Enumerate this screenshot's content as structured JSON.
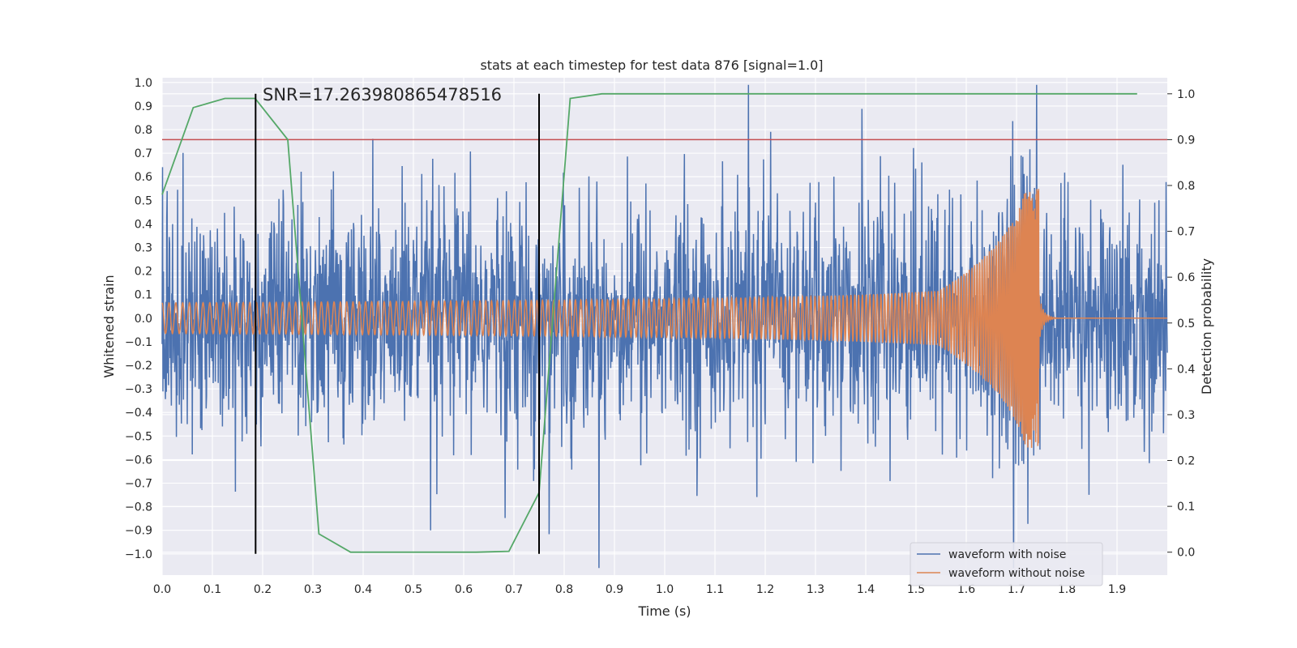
{
  "chart_data": {
    "type": "line",
    "title": "stats at each timestep for test data 876 [signal=1.0]",
    "xlabel": "Time (s)",
    "ylabel": "Whitened strain",
    "y2label": "Detection probability",
    "xlim": [
      0.0,
      2.0
    ],
    "ylim": [
      -1.09,
      1.02
    ],
    "y2lim": [
      -0.05,
      1.035
    ],
    "grid": true,
    "legend_position": "lower-right",
    "x_ticks": [
      "0.0",
      "0.1",
      "0.2",
      "0.3",
      "0.4",
      "0.5",
      "0.6",
      "0.7",
      "0.8",
      "0.9",
      "1.0",
      "1.1",
      "1.2",
      "1.3",
      "1.4",
      "1.5",
      "1.6",
      "1.7",
      "1.8",
      "1.9"
    ],
    "y_ticks": [
      "1.0",
      "0.9",
      "0.8",
      "0.7",
      "0.6",
      "0.5",
      "0.4",
      "0.3",
      "0.2",
      "0.1",
      "0.0",
      "−0.1",
      "−0.2",
      "−0.3",
      "−0.4",
      "−0.5",
      "−0.6",
      "−0.7",
      "−0.8",
      "−0.9",
      "−1.0"
    ],
    "y2_ticks": [
      "1.0",
      "0.9",
      "0.8",
      "0.7",
      "0.6",
      "0.5",
      "0.4",
      "0.3",
      "0.2",
      "0.1",
      "0.0"
    ],
    "annotation": "SNR=17.263980865478516",
    "threshold": 0.9,
    "vertical_lines": [
      0.186,
      0.75
    ],
    "series": [
      {
        "name": "waveform with noise",
        "color": "#4c72b0",
        "axis": "left",
        "noise_std": 0.24,
        "x_end": 2.0
      },
      {
        "name": "waveform without noise",
        "color": "#dd8452",
        "axis": "left",
        "chirp_end_time": 1.745,
        "x_end": 2.0
      },
      {
        "color": "#55a868",
        "axis": "right",
        "x": [
          0.0,
          0.062,
          0.125,
          0.185,
          0.25,
          0.312,
          0.375,
          0.437,
          0.5,
          0.562,
          0.625,
          0.69,
          0.75,
          0.812,
          0.875,
          0.937,
          1.0,
          1.25,
          1.5,
          1.75,
          1.94
        ],
        "y": [
          0.78,
          0.97,
          0.99,
          0.99,
          0.9,
          0.04,
          0.0,
          0.0,
          0.0,
          0.0,
          0.0,
          0.002,
          0.13,
          0.99,
          1.0,
          1.0,
          1.0,
          1.0,
          1.0,
          1.0,
          1.0
        ]
      }
    ],
    "colors": {
      "threshold": "#c44e52",
      "vertical": "#000000",
      "background": "#eaeaf2",
      "grid": "#ffffff"
    }
  }
}
